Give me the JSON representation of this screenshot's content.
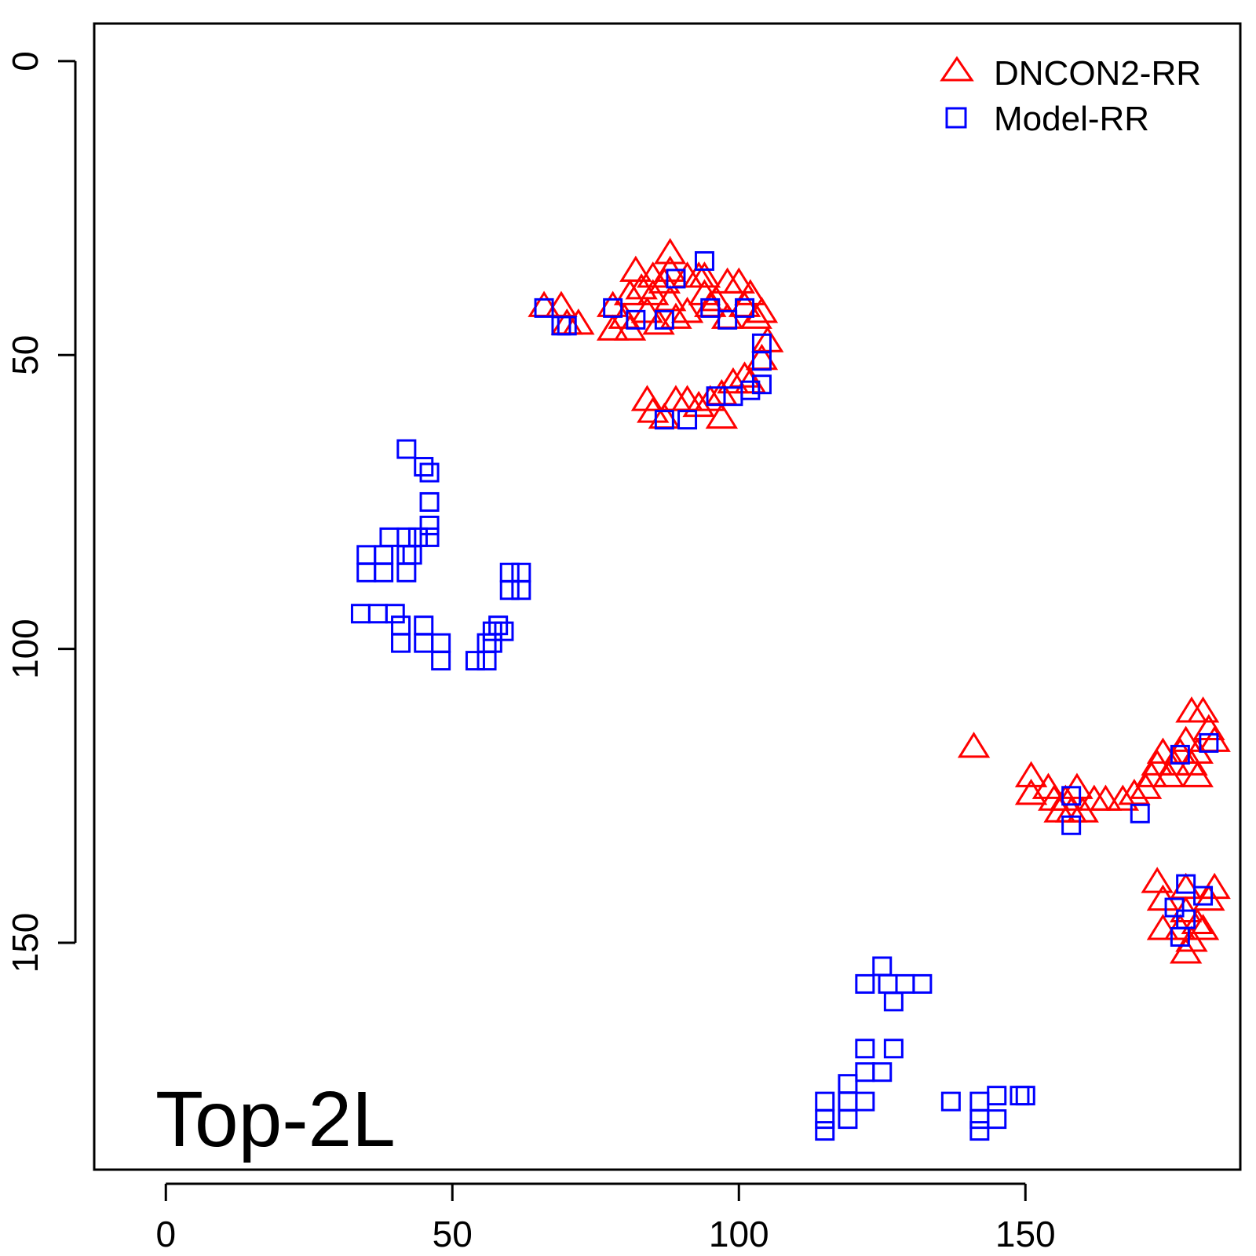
{
  "chart_data": {
    "type": "scatter",
    "title": "",
    "xlabel": "",
    "ylabel": "",
    "annotation": "Top-2L",
    "xlim": [
      -12.5,
      187.5
    ],
    "ylim": [
      -6.4,
      188.6
    ],
    "y_reversed": true,
    "x_ticks": [
      0,
      50,
      100,
      150
    ],
    "y_ticks": [
      0,
      50,
      100,
      150
    ],
    "grid": false,
    "legend_position": "top-right",
    "colors": {
      "triangle": "#ff0000",
      "square": "#0000ff"
    },
    "series": [
      {
        "name": "DNCON2-RR",
        "marker": "triangle",
        "color": "#ff0000",
        "points": [
          [
            66,
            42
          ],
          [
            69,
            42
          ],
          [
            70,
            45
          ],
          [
            72,
            45
          ],
          [
            78,
            42
          ],
          [
            78,
            46
          ],
          [
            80,
            44
          ],
          [
            82,
            36
          ],
          [
            81,
            40
          ],
          [
            81,
            46
          ],
          [
            83,
            39
          ],
          [
            84,
            43
          ],
          [
            85,
            37
          ],
          [
            85,
            40
          ],
          [
            86,
            45
          ],
          [
            87,
            38
          ],
          [
            88,
            33
          ],
          [
            88,
            36
          ],
          [
            88,
            41
          ],
          [
            89,
            44
          ],
          [
            91,
            43
          ],
          [
            91,
            37
          ],
          [
            93,
            37
          ],
          [
            94,
            37
          ],
          [
            94,
            40
          ],
          [
            95,
            42
          ],
          [
            96,
            41
          ],
          [
            98,
            38
          ],
          [
            98,
            44
          ],
          [
            100,
            38
          ],
          [
            101,
            42
          ],
          [
            102,
            40
          ],
          [
            103,
            44
          ],
          [
            104,
            43
          ],
          [
            105,
            48
          ],
          [
            104,
            51
          ],
          [
            102,
            55
          ],
          [
            101,
            54
          ],
          [
            99,
            55
          ],
          [
            97,
            57
          ],
          [
            95,
            58
          ],
          [
            93,
            59
          ],
          [
            91,
            58
          ],
          [
            89,
            58
          ],
          [
            87,
            61
          ],
          [
            85,
            60
          ],
          [
            84,
            58
          ],
          [
            97,
            61
          ],
          [
            141,
            117
          ],
          [
            151,
            122
          ],
          [
            151,
            125
          ],
          [
            154,
            124
          ],
          [
            155,
            126
          ],
          [
            156,
            128
          ],
          [
            157,
            126
          ],
          [
            158,
            128
          ],
          [
            159,
            124
          ],
          [
            160,
            128
          ],
          [
            162,
            126
          ],
          [
            164,
            126
          ],
          [
            167,
            126
          ],
          [
            169,
            125
          ],
          [
            171,
            124
          ],
          [
            172,
            122
          ],
          [
            173,
            120
          ],
          [
            174,
            118
          ],
          [
            175,
            122
          ],
          [
            176,
            120
          ],
          [
            177,
            118
          ],
          [
            178,
            116
          ],
          [
            179,
            120
          ],
          [
            180,
            118
          ],
          [
            180,
            122
          ],
          [
            182,
            114
          ],
          [
            181,
            111
          ],
          [
            179,
            111
          ],
          [
            183,
            116
          ],
          [
            173,
            140
          ],
          [
            174,
            143
          ],
          [
            178,
            141
          ],
          [
            178,
            145
          ],
          [
            180,
            147
          ],
          [
            182,
            143
          ],
          [
            183,
            141
          ],
          [
            174,
            148
          ],
          [
            177,
            148
          ],
          [
            179,
            150
          ],
          [
            178,
            152
          ],
          [
            181,
            148
          ]
        ]
      },
      {
        "name": "Model-RR",
        "marker": "square",
        "color": "#0000ff",
        "points": [
          [
            42,
            66
          ],
          [
            45,
            69
          ],
          [
            46,
            70
          ],
          [
            46,
            75
          ],
          [
            46,
            79
          ],
          [
            46,
            81
          ],
          [
            44,
            81
          ],
          [
            42,
            81
          ],
          [
            39,
            81
          ],
          [
            42,
            84
          ],
          [
            43,
            84
          ],
          [
            42,
            87
          ],
          [
            38,
            84
          ],
          [
            38,
            87
          ],
          [
            35,
            84
          ],
          [
            35,
            87
          ],
          [
            34,
            94
          ],
          [
            37,
            94
          ],
          [
            40,
            94
          ],
          [
            41,
            96
          ],
          [
            41,
            99
          ],
          [
            45,
            96
          ],
          [
            45,
            99
          ],
          [
            48,
            99
          ],
          [
            48,
            102
          ],
          [
            54,
            102
          ],
          [
            56,
            102
          ],
          [
            56,
            99
          ],
          [
            57,
            99
          ],
          [
            57,
            97
          ],
          [
            59,
            97
          ],
          [
            58,
            96
          ],
          [
            60,
            87
          ],
          [
            60,
            90
          ],
          [
            62,
            87
          ],
          [
            62,
            90
          ],
          [
            66,
            42
          ],
          [
            69,
            45
          ],
          [
            70,
            45
          ],
          [
            78,
            42
          ],
          [
            82,
            44
          ],
          [
            87,
            44
          ],
          [
            89,
            37
          ],
          [
            94,
            34
          ],
          [
            95,
            42
          ],
          [
            98,
            44
          ],
          [
            101,
            42
          ],
          [
            104,
            48
          ],
          [
            104,
            51
          ],
          [
            104,
            55
          ],
          [
            102,
            56
          ],
          [
            99,
            57
          ],
          [
            96,
            57
          ],
          [
            91,
            61
          ],
          [
            87,
            61
          ],
          [
            125,
            154
          ],
          [
            126,
            157
          ],
          [
            127,
            160
          ],
          [
            122,
            157
          ],
          [
            132,
            157
          ],
          [
            129,
            157
          ],
          [
            122,
            168
          ],
          [
            127,
            168
          ],
          [
            125,
            172
          ],
          [
            122,
            172
          ],
          [
            119,
            174
          ],
          [
            119,
            177
          ],
          [
            122,
            177
          ],
          [
            119,
            180
          ],
          [
            115,
            177
          ],
          [
            115,
            180
          ],
          [
            115,
            182
          ],
          [
            137,
            177
          ],
          [
            142,
            177
          ],
          [
            142,
            180
          ],
          [
            142,
            182
          ],
          [
            145,
            180
          ],
          [
            145,
            176
          ],
          [
            149,
            176
          ],
          [
            150,
            176
          ],
          [
            158,
            125
          ],
          [
            158,
            130
          ],
          [
            170,
            128
          ],
          [
            177,
            118
          ],
          [
            182,
            116
          ],
          [
            178,
            140
          ],
          [
            178,
            146
          ],
          [
            181,
            142
          ],
          [
            176,
            144
          ],
          [
            177,
            149
          ]
        ]
      }
    ]
  },
  "legend": {
    "items": [
      {
        "label": "DNCON2-RR"
      },
      {
        "label": "Model-RR"
      }
    ]
  }
}
